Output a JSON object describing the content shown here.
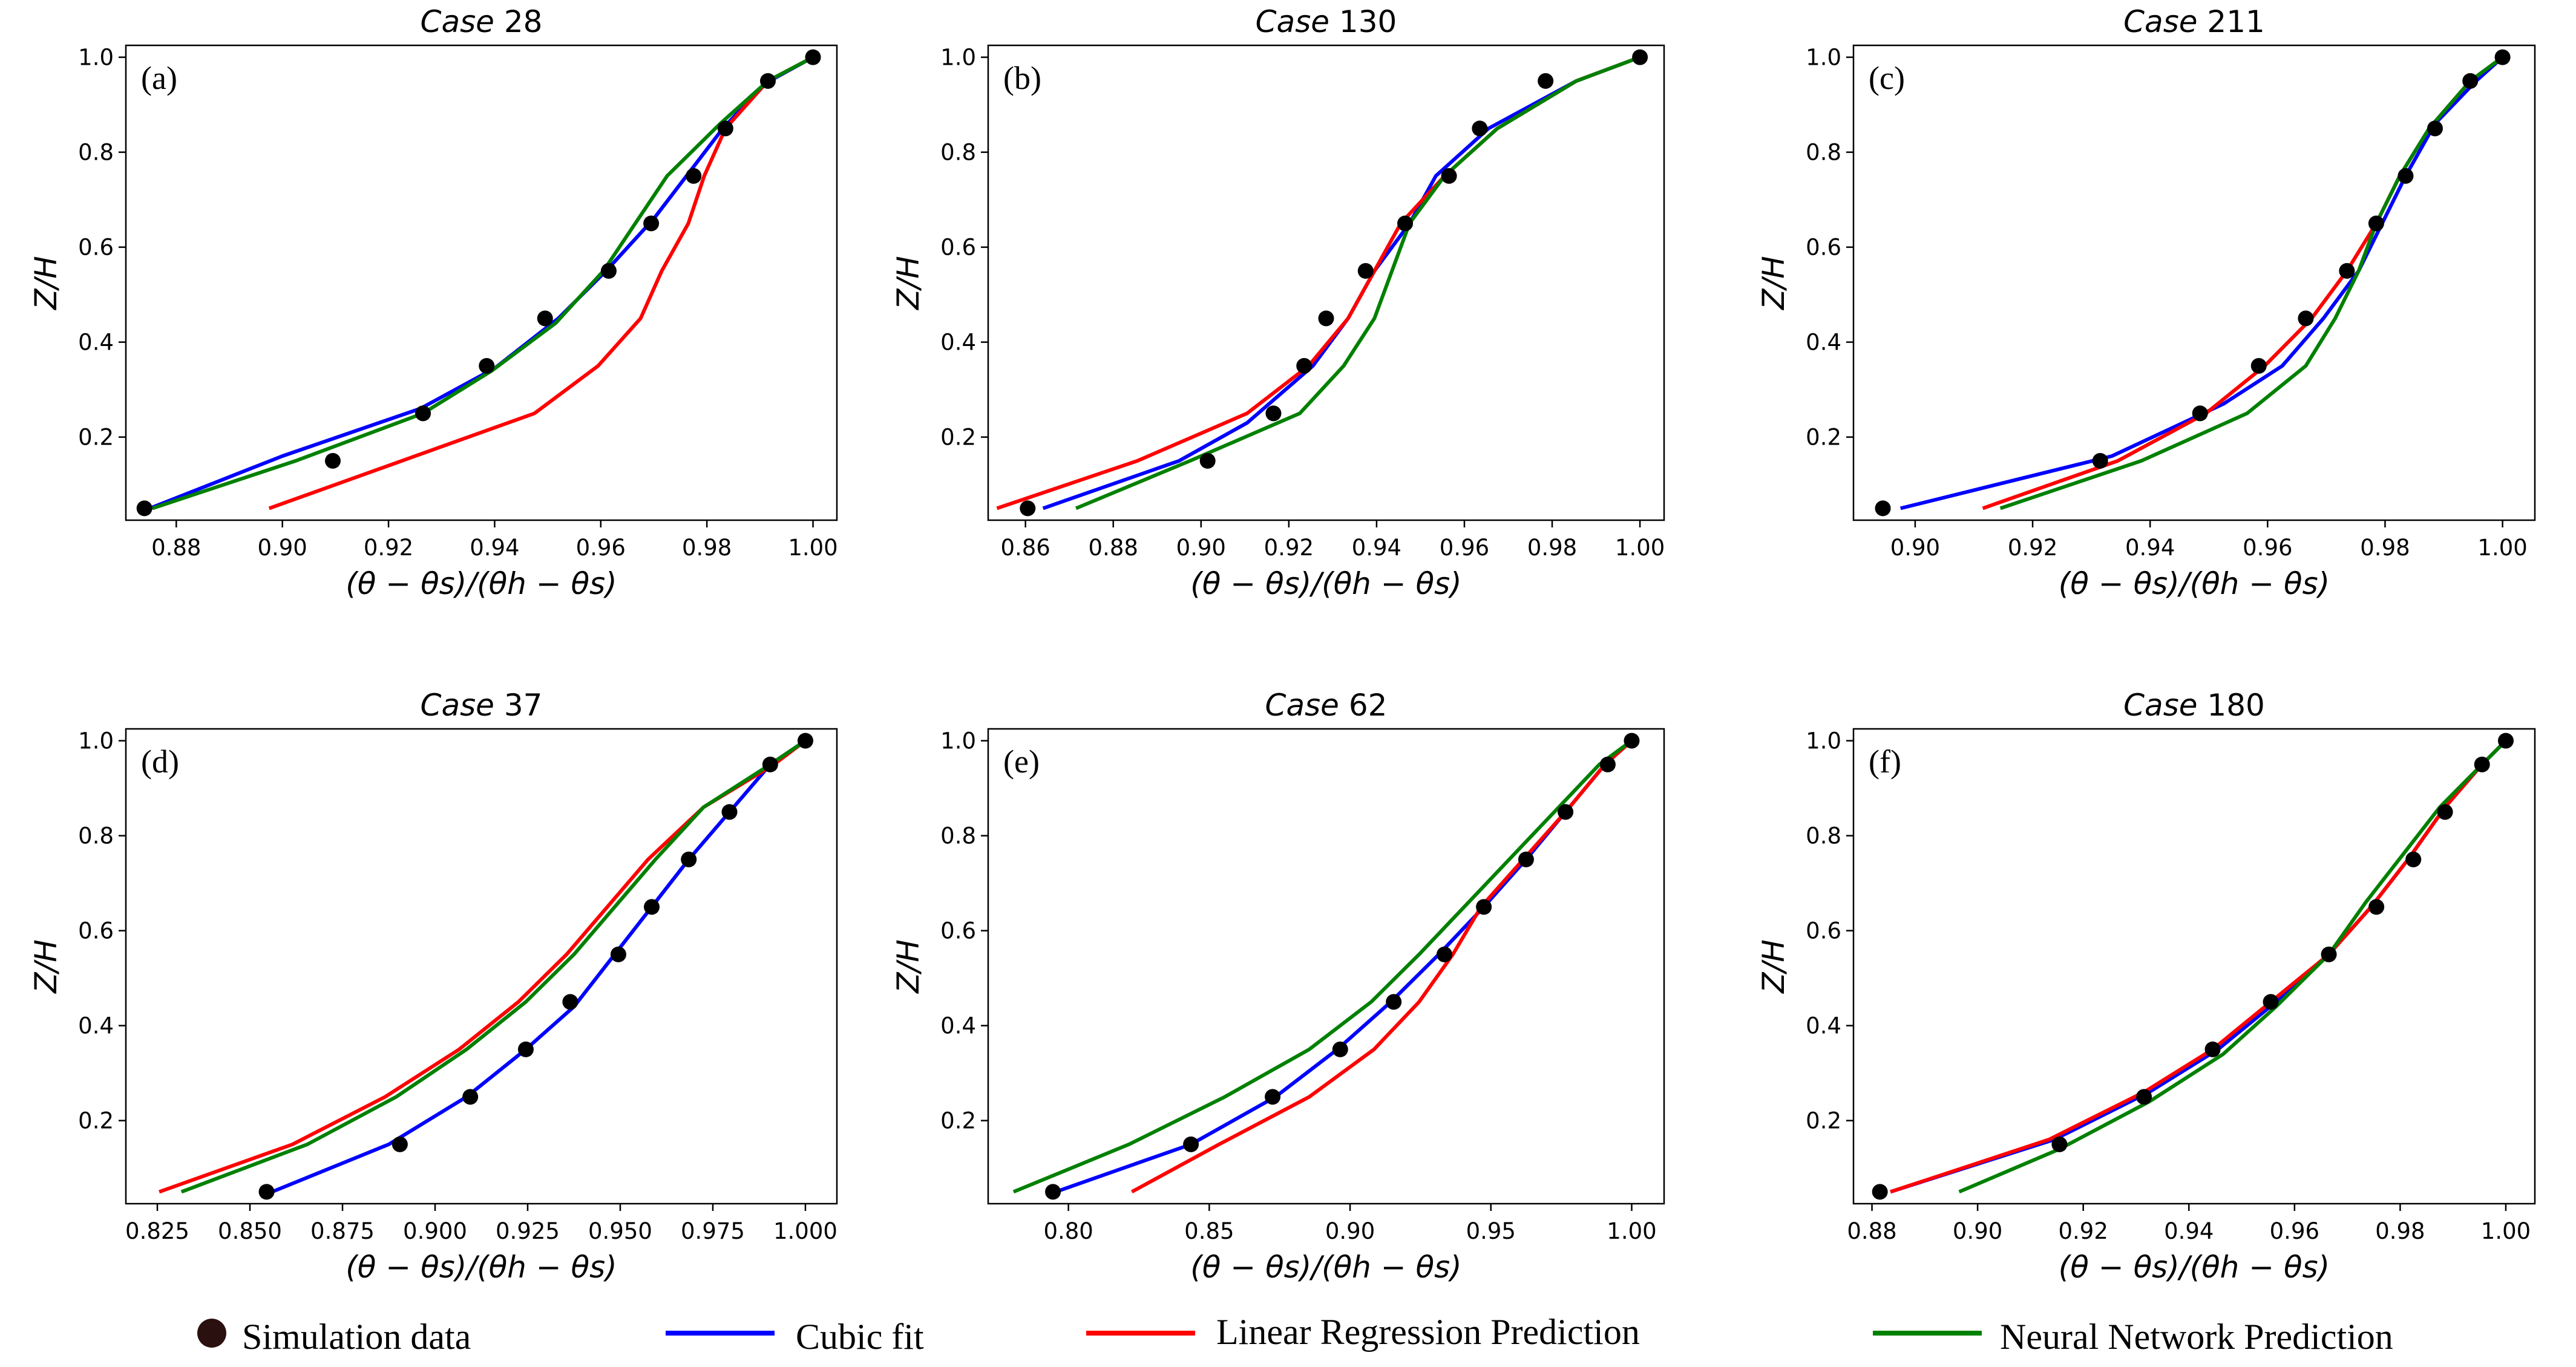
{
  "colors": {
    "simulation": "#000000",
    "legend_marker": "#2b1010",
    "cubic": "#0000ff",
    "linear": "#ff0000",
    "neural": "#008000"
  },
  "legend": {
    "simulation": "Simulation data",
    "cubic": "Cubic fit",
    "linear": "Linear Regression Prediction",
    "neural": "Neural Network Prediction"
  },
  "chart_data": [
    {
      "type": "line",
      "title_italic": "Case",
      "title_number": "28",
      "panel_label": "(a)",
      "xlabel": "(θ − θs)/(θh − θs)",
      "ylabel": "Z/H",
      "xlim": [
        0.8705,
        1.0045
      ],
      "ylim": [
        0.025,
        1.025
      ],
      "xticks": [
        0.88,
        0.9,
        0.92,
        0.94,
        0.96,
        0.98,
        1.0
      ],
      "xtick_labels": [
        "0.88",
        "0.90",
        "0.92",
        "0.94",
        "0.96",
        "0.98",
        "1.00"
      ],
      "yticks": [
        0.2,
        0.4,
        0.6,
        0.8,
        1.0
      ],
      "ytick_labels": [
        "0.2",
        "0.4",
        "0.6",
        "0.8",
        "1.0"
      ],
      "series": [
        {
          "name": "Cubic fit",
          "key": "cubic",
          "x": [
            0.875,
            0.9,
            0.926,
            0.94,
            0.952,
            0.961,
            0.97,
            0.983,
            0.991,
            1.0
          ],
          "y": [
            0.05,
            0.16,
            0.26,
            0.345,
            0.45,
            0.55,
            0.66,
            0.85,
            0.945,
            1.0
          ]
        },
        {
          "name": "Linear Regression Prediction",
          "key": "linear",
          "x": [
            0.8975,
            0.9225,
            0.9475,
            0.9595,
            0.9675,
            0.9715,
            0.9765,
            0.9795,
            0.9835,
            0.9915,
            1.0
          ],
          "y": [
            0.05,
            0.15,
            0.25,
            0.35,
            0.45,
            0.55,
            0.65,
            0.75,
            0.85,
            0.95,
            1.0
          ]
        },
        {
          "name": "Neural Network Prediction",
          "key": "neural",
          "x": [
            0.8755,
            0.9025,
            0.9265,
            0.9395,
            0.9515,
            0.9605,
            0.9725,
            0.9825,
            0.9915,
            1.0
          ],
          "y": [
            0.05,
            0.15,
            0.25,
            0.34,
            0.44,
            0.55,
            0.75,
            0.86,
            0.95,
            1.0
          ]
        }
      ],
      "points": {
        "x": [
          0.874,
          0.9095,
          0.9265,
          0.9385,
          0.9495,
          0.9615,
          0.9695,
          0.9775,
          0.9835,
          0.9915,
          1.0
        ],
        "y": [
          0.05,
          0.15,
          0.25,
          0.35,
          0.45,
          0.55,
          0.65,
          0.75,
          0.85,
          0.95,
          1.0
        ]
      }
    },
    {
      "type": "line",
      "title_italic": "Case",
      "title_number": "130",
      "panel_label": "(b)",
      "xlabel": "(θ − θs)/(θh − θs)",
      "ylabel": "Z/H",
      "xlim": [
        0.8515,
        1.0055
      ],
      "ylim": [
        0.025,
        1.025
      ],
      "xticks": [
        0.86,
        0.88,
        0.9,
        0.92,
        0.94,
        0.96,
        0.98,
        1.0
      ],
      "xtick_labels": [
        "0.86",
        "0.88",
        "0.90",
        "0.92",
        "0.94",
        "0.96",
        "0.98",
        "1.00"
      ],
      "yticks": [
        0.2,
        0.4,
        0.6,
        0.8,
        1.0
      ],
      "ytick_labels": [
        "0.2",
        "0.4",
        "0.6",
        "0.8",
        "1.0"
      ],
      "series": [
        {
          "name": "Cubic fit",
          "key": "cubic",
          "x": [
            0.864,
            0.895,
            0.9105,
            0.9255,
            0.9335,
            0.9395,
            0.9475,
            0.9535,
            0.9655,
            0.9855,
            1.0
          ],
          "y": [
            0.05,
            0.15,
            0.23,
            0.35,
            0.45,
            0.55,
            0.65,
            0.75,
            0.85,
            0.95,
            1.0
          ]
        },
        {
          "name": "Linear Regression Prediction",
          "key": "linear",
          "x": [
            0.8535,
            0.8855,
            0.9105,
            0.9245,
            0.9335,
            0.9395,
            0.9455,
            0.9555,
            0.9675,
            0.9855,
            1.0
          ],
          "y": [
            0.05,
            0.15,
            0.25,
            0.35,
            0.45,
            0.55,
            0.65,
            0.75,
            0.85,
            0.95,
            1.0
          ]
        },
        {
          "name": "Neural Network Prediction",
          "key": "neural",
          "x": [
            0.8715,
            0.8975,
            0.9225,
            0.9325,
            0.9395,
            0.9435,
            0.9475,
            0.9555,
            0.9675,
            0.9855,
            1.0
          ],
          "y": [
            0.05,
            0.15,
            0.25,
            0.35,
            0.45,
            0.55,
            0.65,
            0.75,
            0.85,
            0.95,
            1.0
          ]
        }
      ],
      "points": {
        "x": [
          0.8605,
          0.9015,
          0.9165,
          0.9235,
          0.9285,
          0.9375,
          0.9465,
          0.9565,
          0.9635,
          0.9785,
          1.0
        ],
        "y": [
          0.05,
          0.15,
          0.25,
          0.35,
          0.45,
          0.55,
          0.65,
          0.75,
          0.85,
          0.95,
          1.0
        ]
      }
    },
    {
      "type": "line",
      "title_italic": "Case",
      "title_number": "211",
      "panel_label": "(c)",
      "xlabel": "(θ − θs)/(θh − θs)",
      "ylabel": "Z/H",
      "xlim": [
        0.8895,
        1.0055
      ],
      "ylim": [
        0.025,
        1.025
      ],
      "xticks": [
        0.9,
        0.92,
        0.94,
        0.96,
        0.98,
        1.0
      ],
      "xtick_labels": [
        "0.90",
        "0.92",
        "0.94",
        "0.96",
        "0.98",
        "1.00"
      ],
      "yticks": [
        0.2,
        0.4,
        0.6,
        0.8,
        1.0
      ],
      "ytick_labels": [
        "0.2",
        "0.4",
        "0.6",
        "0.8",
        "1.0"
      ],
      "series": [
        {
          "name": "Cubic fit",
          "key": "cubic",
          "x": [
            0.8975,
            0.9335,
            0.9525,
            0.9625,
            0.9695,
            0.9755,
            0.9795,
            0.9835,
            0.9885,
            0.9955,
            1.0
          ],
          "y": [
            0.05,
            0.16,
            0.27,
            0.35,
            0.45,
            0.55,
            0.65,
            0.75,
            0.86,
            0.95,
            1.0
          ]
        },
        {
          "name": "Linear Regression Prediction",
          "key": "linear",
          "x": [
            0.9115,
            0.9345,
            0.9495,
            0.9595,
            0.9675,
            0.9735,
            0.9785,
            0.9825,
            0.9875,
            0.9945,
            1.0
          ],
          "y": [
            0.05,
            0.15,
            0.25,
            0.35,
            0.45,
            0.55,
            0.65,
            0.75,
            0.85,
            0.95,
            1.0
          ]
        },
        {
          "name": "Neural Network Prediction",
          "key": "neural",
          "x": [
            0.9145,
            0.9385,
            0.9565,
            0.9665,
            0.9715,
            0.9755,
            0.9785,
            0.9825,
            0.9875,
            0.9945,
            1.0
          ],
          "y": [
            0.05,
            0.15,
            0.25,
            0.35,
            0.45,
            0.55,
            0.65,
            0.75,
            0.85,
            0.95,
            1.0
          ]
        }
      ],
      "points": {
        "x": [
          0.8945,
          0.9315,
          0.9485,
          0.9585,
          0.9665,
          0.9735,
          0.9785,
          0.9835,
          0.9885,
          0.9945,
          1.0
        ],
        "y": [
          0.05,
          0.15,
          0.25,
          0.35,
          0.45,
          0.55,
          0.65,
          0.75,
          0.85,
          0.95,
          1.0
        ]
      }
    },
    {
      "type": "line",
      "title_italic": "Case",
      "title_number": "37",
      "panel_label": "(d)",
      "xlabel": "(θ − θs)/(θh − θs)",
      "ylabel": "Z/H",
      "xlim": [
        0.8165,
        1.0085
      ],
      "ylim": [
        0.025,
        1.025
      ],
      "xticks": [
        0.825,
        0.85,
        0.875,
        0.9,
        0.925,
        0.95,
        0.975,
        1.0
      ],
      "xtick_labels": [
        "0.825",
        "0.850",
        "0.875",
        "0.900",
        "0.925",
        "0.950",
        "0.975",
        "1.000"
      ],
      "yticks": [
        0.2,
        0.4,
        0.6,
        0.8,
        1.0
      ],
      "ytick_labels": [
        "0.2",
        "0.4",
        "0.6",
        "0.8",
        "1.0"
      ],
      "series": [
        {
          "name": "Cubic fit",
          "key": "cubic",
          "x": [
            0.856,
            0.8875,
            0.9085,
            0.9245,
            0.9375,
            0.9485,
            0.9585,
            0.9685,
            0.9795,
            0.9905,
            1.0
          ],
          "y": [
            0.05,
            0.15,
            0.25,
            0.35,
            0.44,
            0.55,
            0.65,
            0.75,
            0.85,
            0.95,
            1.0
          ]
        },
        {
          "name": "Linear Regression Prediction",
          "key": "linear",
          "x": [
            0.8255,
            0.8615,
            0.8865,
            0.9065,
            0.9225,
            0.9355,
            0.9465,
            0.9575,
            0.9725,
            0.9915,
            1.0
          ],
          "y": [
            0.05,
            0.15,
            0.25,
            0.35,
            0.45,
            0.55,
            0.65,
            0.75,
            0.86,
            0.95,
            1.0
          ]
        },
        {
          "name": "Neural Network Prediction",
          "key": "neural",
          "x": [
            0.8315,
            0.8655,
            0.8895,
            0.9085,
            0.9245,
            0.9375,
            0.9485,
            0.9595,
            0.9725,
            0.9905,
            1.0
          ],
          "y": [
            0.05,
            0.15,
            0.25,
            0.35,
            0.45,
            0.55,
            0.65,
            0.75,
            0.86,
            0.95,
            1.0
          ]
        }
      ],
      "points": {
        "x": [
          0.8545,
          0.8905,
          0.9095,
          0.9245,
          0.9365,
          0.9495,
          0.9585,
          0.9685,
          0.9795,
          0.9905,
          1.0
        ],
        "y": [
          0.05,
          0.15,
          0.25,
          0.35,
          0.45,
          0.55,
          0.65,
          0.75,
          0.85,
          0.95,
          1.0
        ]
      }
    },
    {
      "type": "line",
      "title_italic": "Case",
      "title_number": "62",
      "panel_label": "(e)",
      "xlabel": "(θ − θs)/(θh − θs)",
      "ylabel": "Z/H",
      "xlim": [
        0.7715,
        1.0115
      ],
      "ylim": [
        0.025,
        1.025
      ],
      "xticks": [
        0.8,
        0.85,
        0.9,
        0.95,
        1.0
      ],
      "xtick_labels": [
        "0.80",
        "0.85",
        "0.90",
        "0.95",
        "1.00"
      ],
      "yticks": [
        0.2,
        0.4,
        0.6,
        0.8,
        1.0
      ],
      "ytick_labels": [
        "0.2",
        "0.4",
        "0.6",
        "0.8",
        "1.0"
      ],
      "series": [
        {
          "name": "Cubic fit",
          "key": "cubic",
          "x": [
            0.7955,
            0.8435,
            0.8735,
            0.8955,
            0.9145,
            0.9315,
            0.9475,
            0.9625,
            0.9765,
            0.9905,
            1.0
          ],
          "y": [
            0.05,
            0.15,
            0.25,
            0.35,
            0.45,
            0.55,
            0.65,
            0.75,
            0.85,
            0.95,
            1.0
          ]
        },
        {
          "name": "Linear Regression Prediction",
          "key": "linear",
          "x": [
            0.8225,
            0.8535,
            0.8855,
            0.9085,
            0.9245,
            0.9365,
            0.9465,
            0.9615,
            0.9765,
            0.9905,
            1.0
          ],
          "y": [
            0.05,
            0.15,
            0.25,
            0.35,
            0.45,
            0.55,
            0.65,
            0.75,
            0.85,
            0.95,
            1.0
          ]
        },
        {
          "name": "Neural Network Prediction",
          "key": "neural",
          "x": [
            0.7805,
            0.8215,
            0.8555,
            0.8855,
            0.9075,
            0.9245,
            0.9405,
            0.9565,
            0.9725,
            0.9885,
            1.0
          ],
          "y": [
            0.05,
            0.15,
            0.25,
            0.35,
            0.45,
            0.55,
            0.65,
            0.75,
            0.85,
            0.95,
            1.0
          ]
        }
      ],
      "points": {
        "x": [
          0.7945,
          0.8435,
          0.8725,
          0.8965,
          0.9155,
          0.9335,
          0.9475,
          0.9625,
          0.9765,
          0.9915,
          1.0
        ],
        "y": [
          0.05,
          0.15,
          0.25,
          0.35,
          0.45,
          0.55,
          0.65,
          0.75,
          0.85,
          0.95,
          1.0
        ]
      }
    },
    {
      "type": "line",
      "title_italic": "Case",
      "title_number": "180",
      "panel_label": "(f)",
      "xlabel": "(θ − θs)/(θh − θs)",
      "ylabel": "Z/H",
      "xlim": [
        0.8765,
        1.0055
      ],
      "ylim": [
        0.025,
        1.025
      ],
      "xticks": [
        0.88,
        0.9,
        0.92,
        0.94,
        0.96,
        0.98,
        1.0
      ],
      "xtick_labels": [
        "0.88",
        "0.90",
        "0.92",
        "0.94",
        "0.96",
        "0.98",
        "1.00"
      ],
      "yticks": [
        0.2,
        0.4,
        0.6,
        0.8,
        1.0
      ],
      "ytick_labels": [
        "0.2",
        "0.4",
        "0.6",
        "0.8",
        "1.0"
      ],
      "series": [
        {
          "name": "Cubic fit",
          "key": "cubic",
          "x": [
            0.8835,
            0.9145,
            0.9325,
            0.9455,
            0.9565,
            0.9665,
            0.9745,
            0.9815,
            0.9885,
            0.9955,
            1.0
          ],
          "y": [
            0.05,
            0.16,
            0.26,
            0.35,
            0.45,
            0.55,
            0.65,
            0.75,
            0.86,
            0.95,
            1.0
          ]
        },
        {
          "name": "Linear Regression Prediction",
          "key": "linear",
          "x": [
            0.8835,
            0.9135,
            0.9315,
            0.9445,
            0.9555,
            0.9665,
            0.9745,
            0.9815,
            0.9885,
            0.9955,
            1.0
          ],
          "y": [
            0.05,
            0.16,
            0.26,
            0.35,
            0.45,
            0.55,
            0.65,
            0.75,
            0.86,
            0.95,
            1.0
          ]
        },
        {
          "name": "Neural Network Prediction",
          "key": "neural",
          "x": [
            0.8965,
            0.9155,
            0.9325,
            0.9465,
            0.9565,
            0.9665,
            0.9735,
            0.9805,
            0.9875,
            0.9955,
            1.0
          ],
          "y": [
            0.05,
            0.14,
            0.24,
            0.34,
            0.44,
            0.55,
            0.66,
            0.76,
            0.86,
            0.95,
            1.0
          ]
        }
      ],
      "points": {
        "x": [
          0.8815,
          0.9155,
          0.9315,
          0.9445,
          0.9555,
          0.9665,
          0.9755,
          0.9825,
          0.9885,
          0.9955,
          1.0
        ],
        "y": [
          0.05,
          0.15,
          0.25,
          0.35,
          0.45,
          0.55,
          0.65,
          0.75,
          0.85,
          0.95,
          1.0
        ]
      }
    }
  ]
}
